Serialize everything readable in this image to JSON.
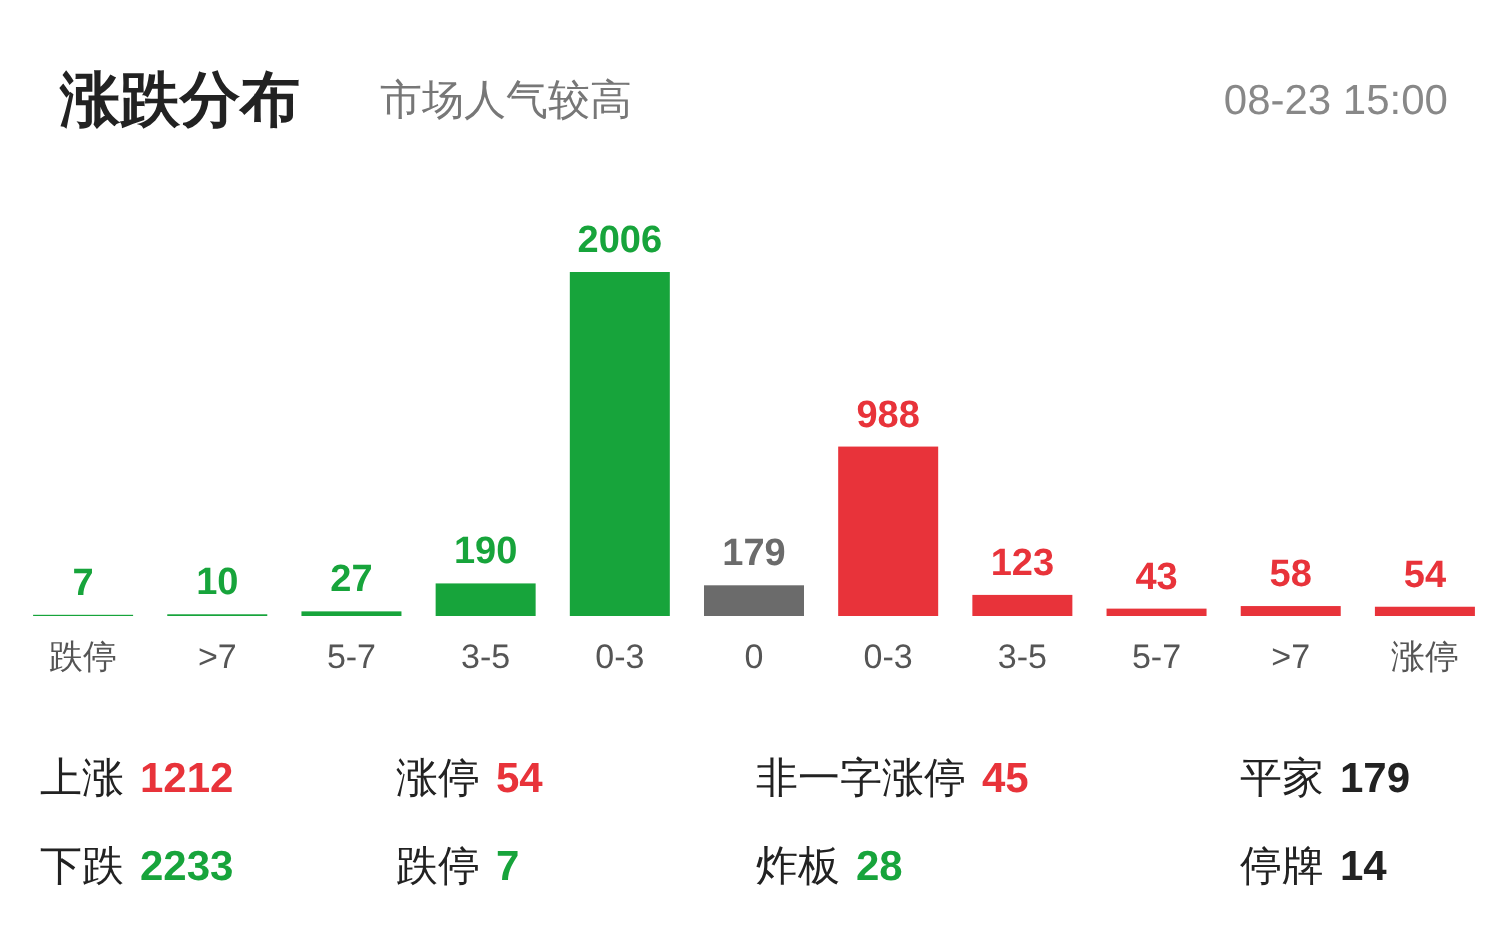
{
  "chart_data": [
    {
      "type": "bar",
      "title": "涨跌分布",
      "subtitle": "市场人气较高",
      "annotations": [
        "08-23 15:00"
      ],
      "categories": [
        "跌停",
        ">7",
        "5-7",
        "3-5",
        "0-3",
        "0",
        "0-3",
        "3-5",
        "5-7",
        ">7",
        "涨停"
      ],
      "values": [
        7,
        10,
        27,
        190,
        2006,
        179,
        988,
        123,
        43,
        58,
        54
      ],
      "colors": [
        "#17a43b",
        "#17a43b",
        "#17a43b",
        "#17a43b",
        "#17a43b",
        "#6b6b6b",
        "#e8333a",
        "#e8333a",
        "#e8333a",
        "#e8333a",
        "#e8333a"
      ],
      "data_labels": true
    },
    {
      "type": "other",
      "categories": [
        "上涨",
        "下跌",
        "涨停",
        "跌停",
        "非一字涨停",
        "炸板",
        "平家",
        "停牌"
      ],
      "values": [
        1212,
        2233,
        54,
        7,
        45,
        28,
        179,
        14
      ],
      "colors": [
        "#e8333a",
        "#17a43b",
        "#e8333a",
        "#17a43b",
        "#e8333a",
        "#17a43b",
        "#222222",
        "#222222"
      ],
      "data_labels": true
    }
  ]
}
